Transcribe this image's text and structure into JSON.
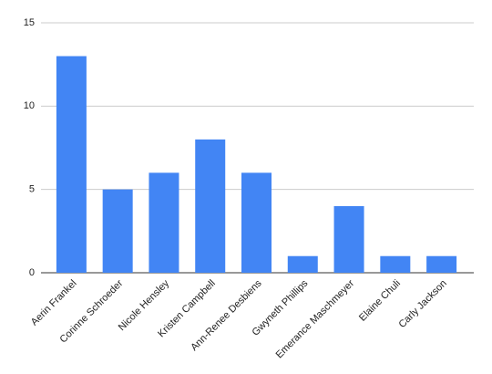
{
  "chart_data": {
    "type": "bar",
    "categories": [
      "Aerin Frankel",
      "Corinne Schroeder",
      "Nicole Hensley",
      "Kristen Campbell",
      "Ann-Renee Desbiens",
      "Gwyneth Phillips",
      "Emerance Maschmeyer",
      "Elaine Chuli",
      "Carly Jackson"
    ],
    "values": [
      13,
      5,
      6,
      8,
      6,
      1,
      4,
      1,
      1
    ],
    "color": "#4285f4",
    "ylim": [
      0,
      15
    ],
    "yticks": [
      0,
      5,
      10,
      15
    ],
    "grid": true
  }
}
